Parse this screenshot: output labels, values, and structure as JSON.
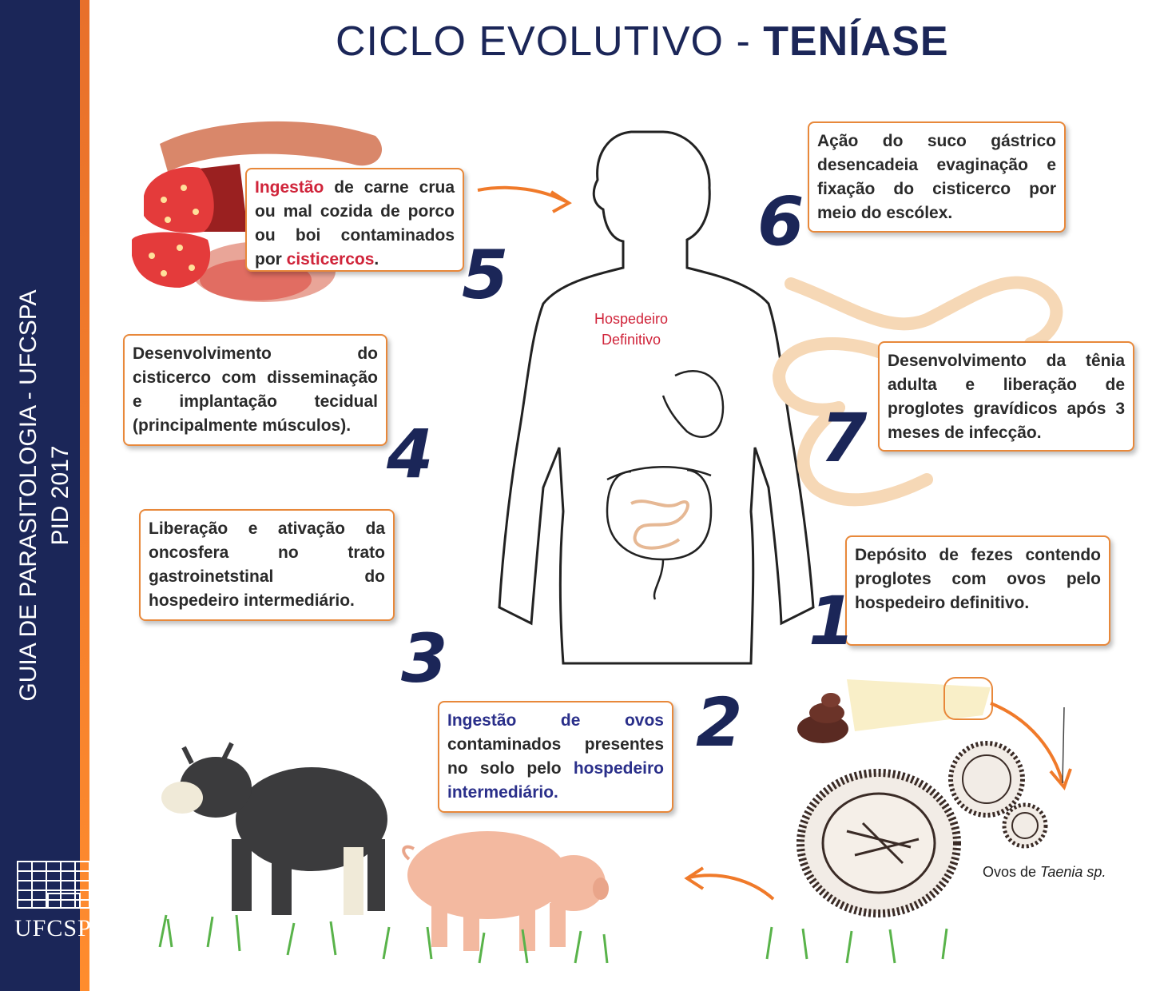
{
  "title": {
    "part1": "CICLO EVOLUTIVO  -",
    "part2": "TENÍASE"
  },
  "sidebar": {
    "line1": "GUIA DE PARASITOLOGIA  - UFCSPA",
    "line2": "PID 2017",
    "logo": "UFCSPA"
  },
  "host_label": {
    "line1": "Hospedeiro",
    "line2": "Definitivo"
  },
  "eggs_caption": {
    "prefix": "Ovos de ",
    "species": "Taenia sp."
  },
  "steps": [
    {
      "number": "1",
      "text": "Depósito de fezes contendo proglotes com ovos pelo hospedeiro definitivo."
    },
    {
      "number": "2",
      "highlight1": "Ingestão de ovos",
      "text": " contaminados presentes no solo pelo ",
      "highlight2": "hospedeiro intermediário."
    },
    {
      "number": "3",
      "text": "Liberação e ativação da oncosfera no trato gastroinetstinal do hospedeiro intermediário."
    },
    {
      "number": "4",
      "text": "Desenvolvimento do cisticerco com disseminação e implantação tecidual (principalmente músculos)."
    },
    {
      "number": "5",
      "highlight1": "Ingestão",
      "text": " de carne crua ou mal cozida de porco ou boi contaminados por ",
      "highlight2": "cisticercos",
      "suffix": "."
    },
    {
      "number": "6",
      "text": "Ação do suco gástrico desencadeia evaginação e fixação do cisticerco por meio do escólex."
    },
    {
      "number": "7",
      "text": "Desenvolvimento da tênia adulta e liberação de proglotes gravídicos após 3 meses de infecção."
    }
  ],
  "colors": {
    "navy": "#1b2658",
    "accent_orange": "#e8883a",
    "highlight_red": "#d0243a",
    "highlight_blue": "#2a2f8a"
  },
  "icons": [
    "meat-slices-icon",
    "human-silhouette-icon",
    "tapeworm-icon",
    "feces-icon",
    "taenia-egg-icon",
    "cow-icon",
    "pig-icon",
    "grass-icon",
    "cycle-arrow-icon",
    "university-building-icon"
  ]
}
